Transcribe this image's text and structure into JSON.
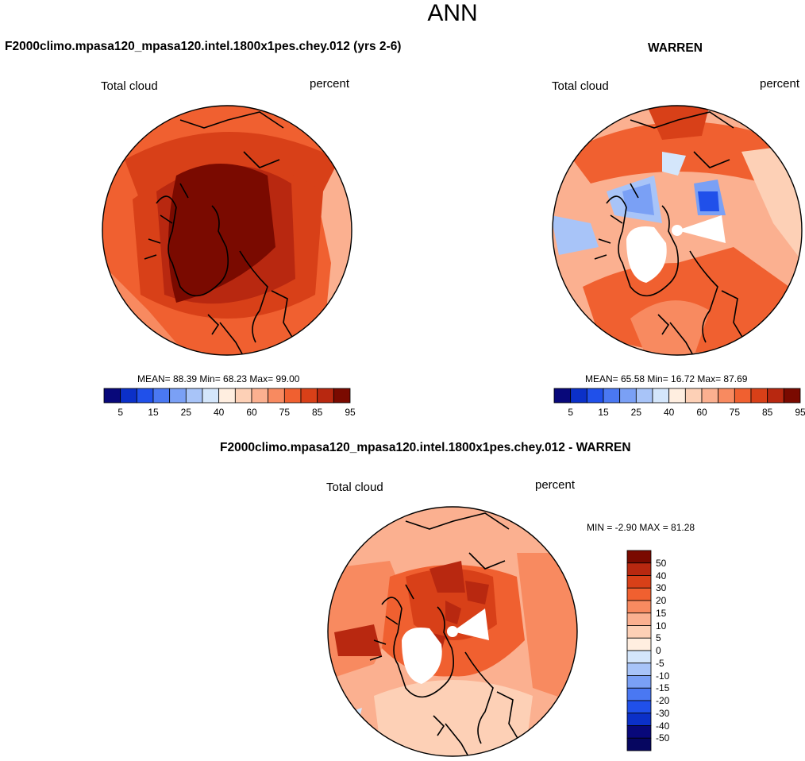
{
  "page_title": "ANN",
  "panels": [
    {
      "title": "F2000climo.mpasa120_mpasa120.intel.1800x1pes.chey.012 (yrs 2-6)",
      "left_label": "Total cloud",
      "right_label": "percent",
      "stats": "MEAN= 88.39  Min= 68.23  Max= 99.00"
    },
    {
      "title": "WARREN",
      "left_label": "Total cloud",
      "right_label": "percent",
      "stats": "MEAN= 65.58  Min= 16.72  Max= 87.69"
    },
    {
      "title": "F2000climo.mpasa120_mpasa120.intel.1800x1pes.chey.012 - WARREN",
      "left_label": "Total cloud",
      "right_label": "percent",
      "stats": "MIN =  -2.90 MAX =  81.28"
    }
  ],
  "colorbar_horizontal": {
    "colors": [
      "#08087a",
      "#0b30c8",
      "#2050ea",
      "#4a78f2",
      "#7aa0f5",
      "#a8c4f8",
      "#d4e6fb",
      "#ffeee0",
      "#fdd0b6",
      "#fbb090",
      "#f88a60",
      "#f06030",
      "#d84018",
      "#b82810",
      "#7a0a00"
    ],
    "tick_labels": [
      "5",
      "15",
      "25",
      "40",
      "60",
      "75",
      "85",
      "95"
    ]
  },
  "colorbar_vertical": {
    "colors_top_to_bottom": [
      "#7a0a00",
      "#b82810",
      "#d84018",
      "#f06030",
      "#f88a60",
      "#fbb090",
      "#fdd0b6",
      "#ffeee0",
      "#d4e6fb",
      "#a8c4f8",
      "#7aa0f5",
      "#4a78f2",
      "#2050ea",
      "#0b30c8",
      "#08087a",
      "#060660"
    ],
    "tick_labels": [
      "50",
      "40",
      "30",
      "20",
      "15",
      "10",
      "5",
      "0",
      "-5",
      "-10",
      "-15",
      "-20",
      "-30",
      "-40",
      "-50"
    ]
  }
}
